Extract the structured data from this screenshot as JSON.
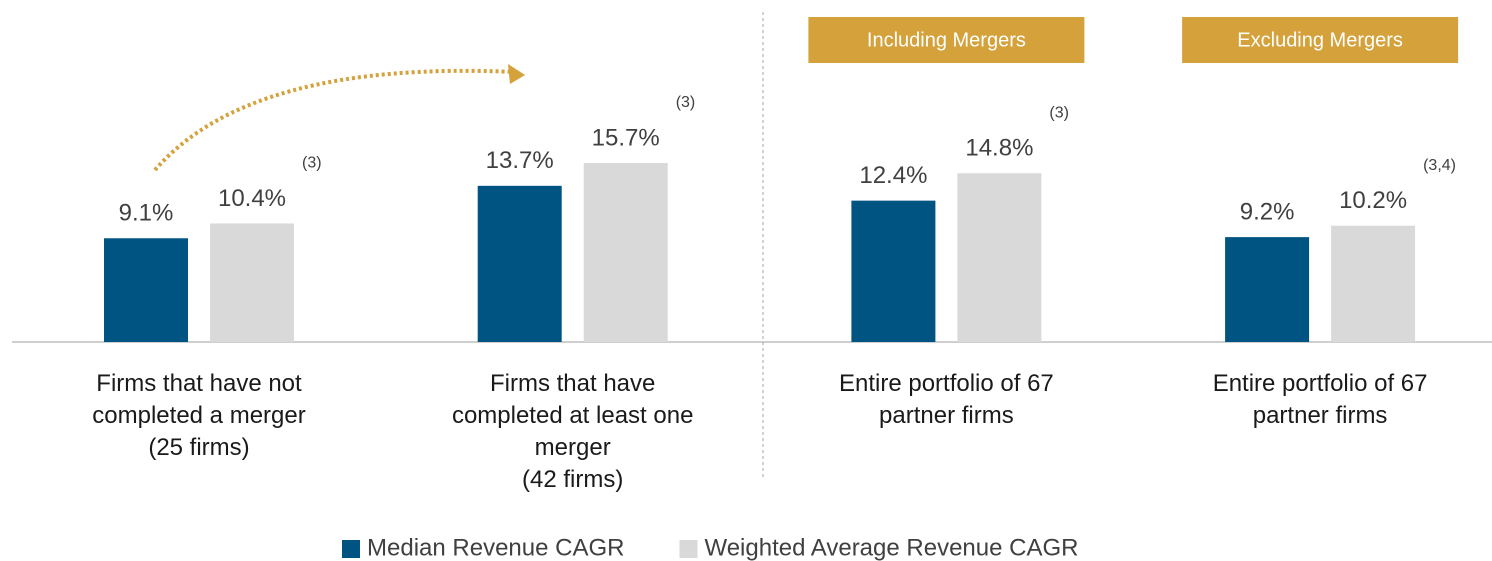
{
  "chart_data": {
    "type": "bar",
    "categories": [
      "Firms that have not\ncompleted a merger\n(25 firms)",
      "Firms that have\ncompleted at least one\nmerger\n(42 firms)",
      "Entire portfolio of 67\npartner firms",
      "Entire portfolio of 67\npartner firms"
    ],
    "group_headers": [
      null,
      null,
      "Including Mergers",
      "Excluding Mergers"
    ],
    "footnotes": [
      "(3)",
      "(3)",
      "(3)",
      "(3,4)"
    ],
    "series": [
      {
        "name": "Median Revenue CAGR",
        "color": "#005482",
        "values": [
          9.1,
          13.7,
          12.4,
          9.2
        ],
        "value_labels": [
          "9.1%",
          "13.7%",
          "12.4%",
          "9.2%"
        ]
      },
      {
        "name": "Weighted Average Revenue CAGR",
        "color": "#d9d9d9",
        "values": [
          10.4,
          15.7,
          14.8,
          10.2
        ],
        "value_labels": [
          "10.4%",
          "15.7%",
          "14.8%",
          "10.2%"
        ]
      }
    ],
    "ylim": [
      0,
      30
    ],
    "header_color": "#d4a13a",
    "legend": "bottom"
  }
}
